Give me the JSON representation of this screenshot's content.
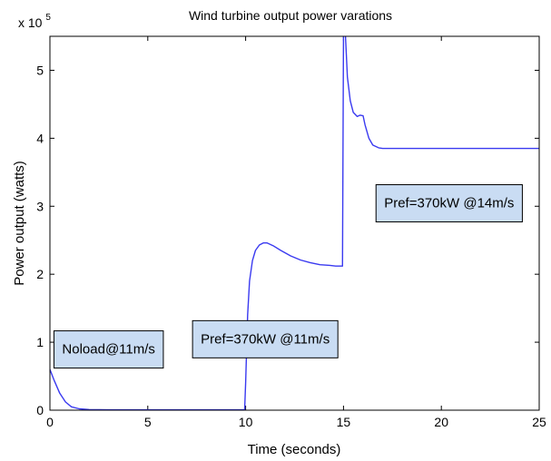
{
  "chart_data": {
    "type": "line",
    "title": "Wind turbine output power varations",
    "xlabel": "Time (seconds)",
    "ylabel": "Power output (watts)",
    "multiplier_base": "x 10",
    "multiplier_exp": "5",
    "xlim": [
      0,
      25
    ],
    "ylim": [
      0,
      5.5
    ],
    "xticks": [
      0,
      5,
      10,
      15,
      20,
      25
    ],
    "yticks": [
      0,
      1,
      2,
      3,
      4,
      5
    ],
    "grid": false,
    "line_color": "#3a3af0",
    "annotation_fill": "#c9dcf3",
    "annotations": [
      {
        "text": "Noload@11m/s",
        "x": 3.0,
        "y": 0.9
      },
      {
        "text": "Pref=370kW @11m/s",
        "x": 11.0,
        "y": 1.05
      },
      {
        "text": "Pref=370kW @14m/s",
        "x": 20.4,
        "y": 3.05
      }
    ],
    "series": [
      {
        "x": [
          0,
          0.2,
          0.5,
          0.8,
          1.1,
          1.5,
          2,
          3,
          4,
          5,
          6,
          7,
          8,
          9,
          9.95,
          10.0,
          10.1,
          10.2,
          10.35,
          10.5,
          10.7,
          10.9,
          11.1,
          11.4,
          11.8,
          12.3,
          12.8,
          13.3,
          13.8,
          14.3,
          14.6,
          14.95,
          15.0,
          15.02,
          15.1,
          15.2,
          15.35,
          15.5,
          15.7,
          15.85,
          16.0,
          16.1,
          16.3,
          16.5,
          16.8,
          17,
          18,
          20,
          22,
          25
        ],
        "y": [
          0.6,
          0.45,
          0.25,
          0.12,
          0.05,
          0.02,
          0.01,
          0.005,
          0.005,
          0.005,
          0.005,
          0.005,
          0.005,
          0.005,
          0.005,
          0.4,
          1.4,
          1.9,
          2.2,
          2.35,
          2.43,
          2.46,
          2.46,
          2.42,
          2.35,
          2.27,
          2.21,
          2.17,
          2.14,
          2.13,
          2.12,
          2.12,
          5.5,
          6.0,
          5.5,
          4.9,
          4.55,
          4.38,
          4.32,
          4.34,
          4.33,
          4.2,
          4.0,
          3.9,
          3.86,
          3.85,
          3.85,
          3.85,
          3.85,
          3.85
        ]
      }
    ]
  }
}
